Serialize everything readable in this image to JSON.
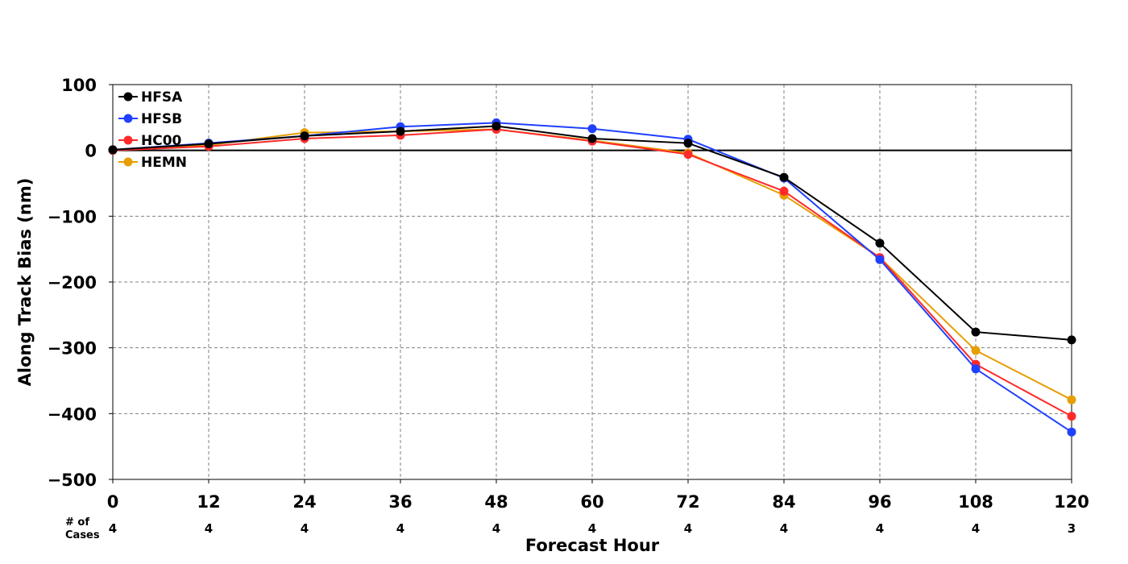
{
  "chart_data": {
    "type": "line",
    "title": "",
    "xlabel": "Forecast Hour",
    "ylabel": "Along Track Bias (nm)",
    "x": [
      0,
      12,
      24,
      36,
      48,
      60,
      72,
      84,
      96,
      108,
      120
    ],
    "xlim": [
      0,
      120
    ],
    "ylim": [
      -500,
      100
    ],
    "y_ticks": [
      100,
      0,
      -100,
      -200,
      -300,
      -400,
      -500
    ],
    "y_tick_labels": [
      "100",
      "0",
      "−100",
      "−200",
      "−300",
      "−400",
      "−500"
    ],
    "x_tick_labels": [
      "0",
      "12",
      "24",
      "36",
      "48",
      "60",
      "72",
      "84",
      "96",
      "108",
      "120"
    ],
    "grid": true,
    "zero_line": true,
    "legend_position": "top-left",
    "cases_header": [
      "# of",
      "Cases"
    ],
    "cases": [
      "4",
      "4",
      "4",
      "4",
      "4",
      "4",
      "4",
      "4",
      "4",
      "4",
      "3"
    ],
    "series": [
      {
        "name": "HFSA",
        "color": "#000000",
        "values": [
          1,
          10,
          22,
          29,
          37,
          18,
          11,
          -41,
          -141,
          -276,
          -288
        ]
      },
      {
        "name": "HFSB",
        "color": "#2040ff",
        "values": [
          1,
          11,
          22,
          36,
          42,
          33,
          17,
          -42,
          -166,
          -332,
          -428
        ]
      },
      {
        "name": "HC00",
        "color": "#ff2a2a",
        "values": [
          0,
          6,
          18,
          23,
          32,
          14,
          -6,
          -62,
          -163,
          -325,
          -404
        ]
      },
      {
        "name": "HEMN",
        "color": "#e69f00",
        "values": [
          0,
          8,
          27,
          29,
          32,
          15,
          -4,
          -68,
          -163,
          -304,
          -379
        ]
      }
    ]
  }
}
